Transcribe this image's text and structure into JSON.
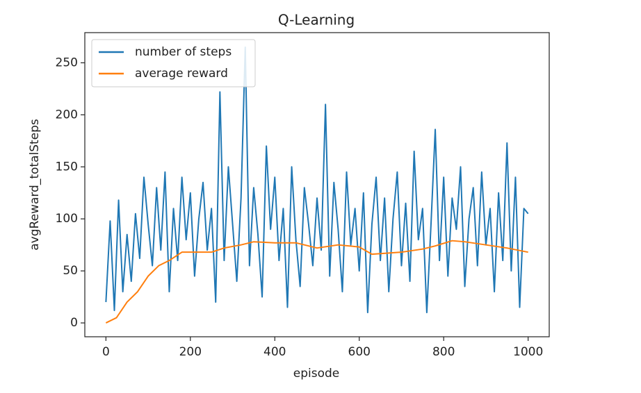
{
  "chart_data": {
    "type": "line",
    "title": "Q-Learning",
    "xlabel": "episode",
    "ylabel": "avgReward_totalSteps",
    "xlim": [
      -50,
      1050
    ],
    "ylim": [
      -13.3,
      279
    ],
    "xticks": [
      0,
      200,
      400,
      600,
      800,
      1000
    ],
    "yticks": [
      0,
      50,
      100,
      150,
      200,
      250
    ],
    "grid": false,
    "legend": "upper left",
    "series": [
      {
        "name": "number of steps",
        "color": "#1f77b4",
        "x": [
          0,
          10,
          20,
          30,
          40,
          50,
          60,
          70,
          80,
          90,
          100,
          110,
          120,
          130,
          140,
          150,
          160,
          170,
          180,
          190,
          200,
          210,
          220,
          230,
          240,
          250,
          260,
          270,
          280,
          290,
          300,
          310,
          320,
          330,
          340,
          350,
          360,
          370,
          380,
          390,
          400,
          410,
          420,
          430,
          440,
          450,
          460,
          470,
          480,
          490,
          500,
          510,
          520,
          530,
          540,
          550,
          560,
          570,
          580,
          590,
          600,
          610,
          620,
          630,
          640,
          650,
          660,
          670,
          680,
          690,
          700,
          710,
          720,
          730,
          740,
          750,
          760,
          770,
          780,
          790,
          800,
          810,
          820,
          830,
          840,
          850,
          860,
          870,
          880,
          890,
          900,
          910,
          920,
          930,
          940,
          950,
          960,
          970,
          980,
          990,
          1000
        ],
        "values": [
          20,
          98,
          12,
          118,
          30,
          85,
          40,
          105,
          62,
          140,
          95,
          55,
          130,
          70,
          145,
          30,
          110,
          60,
          140,
          80,
          125,
          45,
          100,
          135,
          70,
          110,
          20,
          222,
          60,
          150,
          95,
          40,
          120,
          265,
          55,
          130,
          85,
          25,
          170,
          90,
          140,
          60,
          110,
          15,
          150,
          80,
          35,
          130,
          95,
          55,
          120,
          70,
          210,
          45,
          135,
          90,
          30,
          145,
          75,
          110,
          50,
          125,
          10,
          95,
          140,
          60,
          120,
          30,
          100,
          145,
          55,
          115,
          40,
          165,
          80,
          110,
          10,
          95,
          186,
          60,
          140,
          45,
          120,
          90,
          150,
          35,
          100,
          130,
          55,
          145,
          75,
          110,
          30,
          125,
          60,
          173,
          50,
          140,
          15,
          110,
          105
        ]
      },
      {
        "name": "average reward",
        "color": "#ff7f0e",
        "x": [
          0,
          25,
          50,
          75,
          100,
          125,
          150,
          180,
          200,
          250,
          280,
          320,
          350,
          400,
          450,
          500,
          550,
          600,
          630,
          700,
          750,
          780,
          820,
          850,
          900,
          950,
          1000
        ],
        "values": [
          0,
          5,
          20,
          30,
          45,
          55,
          60,
          68,
          68,
          68,
          72,
          75,
          78,
          77,
          77,
          72,
          75,
          73,
          66,
          68,
          71,
          74,
          79,
          78,
          75,
          72,
          68
        ]
      }
    ]
  }
}
